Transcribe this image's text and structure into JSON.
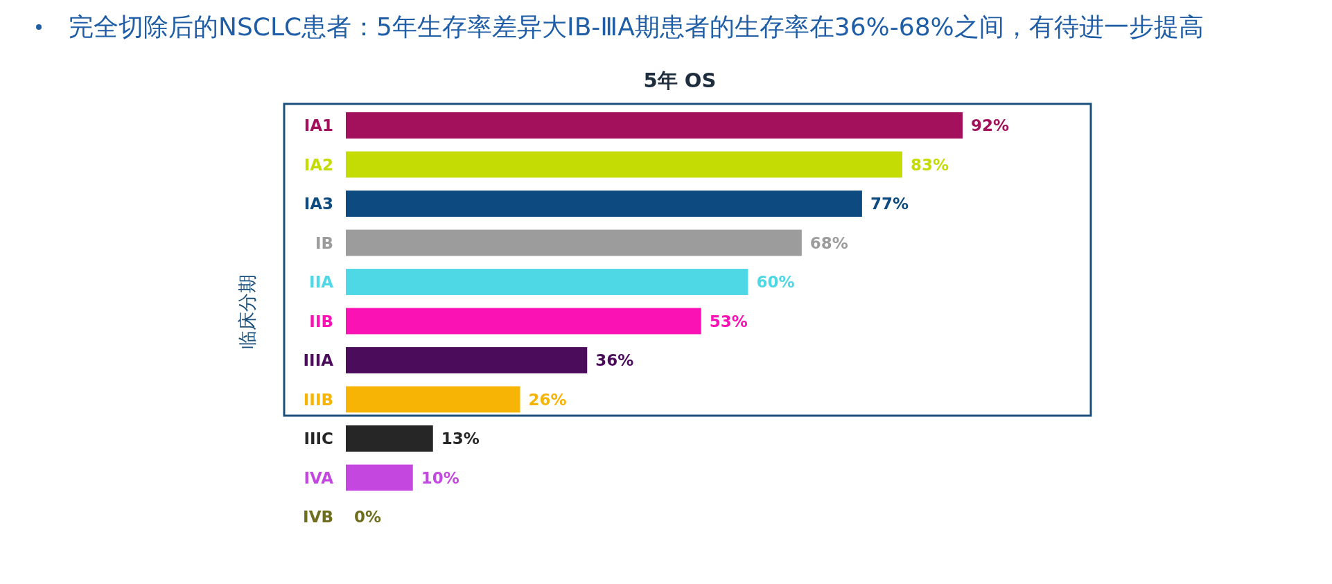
{
  "chart_data": {
    "type": "bar",
    "orientation": "horizontal",
    "title": "完全切除后的NSCLC患者：5年生存率差异大IB-ⅢA期患者的生存率在36%-68%之间，有待进一步提高",
    "subtitle": "5年 OS",
    "ylabel": "临床分期",
    "categories": [
      "IA1",
      "IA2",
      "IA3",
      "IB",
      "IIA",
      "IIB",
      "IIIA",
      "IIIB",
      "IIIC",
      "IVA",
      "IVB"
    ],
    "values": [
      92,
      83,
      77,
      68,
      60,
      53,
      36,
      26,
      13,
      10,
      0
    ],
    "colors": [
      "#a3105c",
      "#c4dc04",
      "#0c4a80",
      "#9c9c9c",
      "#4ed8e6",
      "#fa12b4",
      "#4c0c5c",
      "#f8b404",
      "#262626",
      "#c448e0",
      "#6e6e1e"
    ],
    "value_labels": [
      "92%",
      "83%",
      "77%",
      "68%",
      "60%",
      "53%",
      "36%",
      "26%",
      "13%",
      "10%",
      "0%"
    ]
  }
}
